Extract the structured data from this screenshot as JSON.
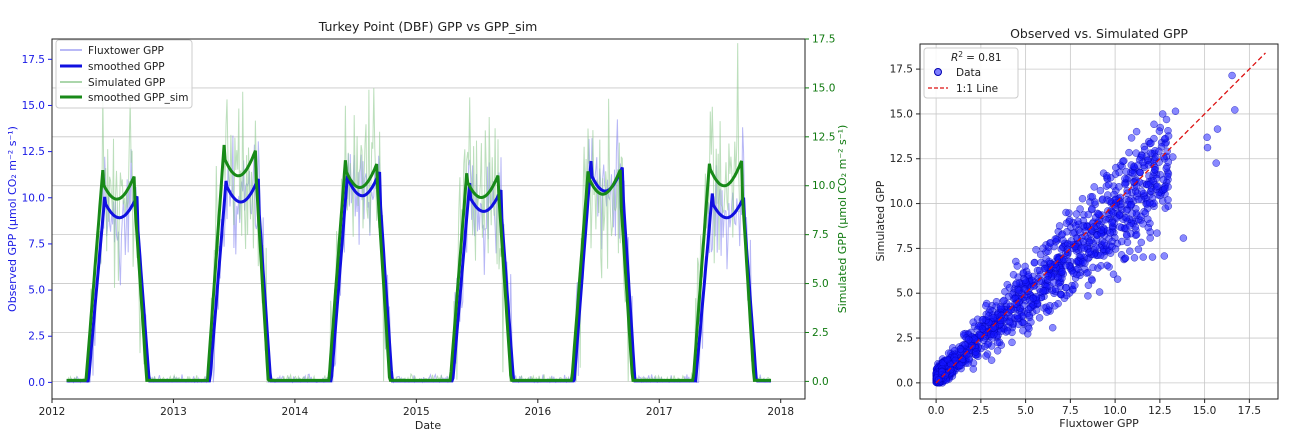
{
  "chart_data": [
    {
      "type": "line",
      "title": "Turkey Point (DBF) GPP vs GPP_sim",
      "xlabel": "Date",
      "ylabel_left": "Observed GPP (μmol CO₂ m⁻² s⁻¹)",
      "ylabel_right": "Simulated GPP (μmol CO₂ m⁻² s⁻¹)",
      "xlim": [
        2012.0,
        2018.2
      ],
      "ylim_left": [
        -0.9,
        18.6
      ],
      "ylim_right": [
        -0.9,
        17.5
      ],
      "xticks": [
        2012,
        2013,
        2014,
        2015,
        2016,
        2017,
        2018
      ],
      "xtick_labels": [
        "2012",
        "2013",
        "2014",
        "2015",
        "2016",
        "2017",
        "2018"
      ],
      "yticks_left": [
        "0.0",
        "2.5",
        "5.0",
        "7.5",
        "10.0",
        "12.5",
        "15.0",
        "17.5"
      ],
      "yticks_right": [
        "0.0",
        "2.5",
        "5.0",
        "7.5",
        "10.0",
        "12.5",
        "15.0",
        "17.5"
      ],
      "grid": true,
      "legend_position": "top-left",
      "colors": {
        "obs": "#1010e0",
        "obs_raw": "#7b7bee",
        "sim": "#188a18",
        "sim_raw": "#8fc98f",
        "left_axis": "#1a1ae6",
        "right_axis": "#107a10"
      },
      "season_peaks": [
        {
          "year": 2012,
          "obs_peak": 10.4,
          "sim_peak": 10.9
        },
        {
          "year": 2013,
          "obs_peak": 11.4,
          "sim_peak": 12.3
        },
        {
          "year": 2014,
          "obs_peak": 11.8,
          "sim_peak": 11.6
        },
        {
          "year": 2015,
          "obs_peak": 10.8,
          "sim_peak": 11.0
        },
        {
          "year": 2016,
          "obs_peak": 12.1,
          "sim_peak": 11.2
        },
        {
          "year": 2017,
          "obs_peak": 10.4,
          "sim_peak": 11.7
        }
      ],
      "series": [
        {
          "name": "Fluxtower GPP",
          "style": "raw",
          "axis": "left"
        },
        {
          "name": "smoothed GPP",
          "style": "smooth",
          "axis": "left"
        },
        {
          "name": "Simulated GPP",
          "style": "raw",
          "axis": "right"
        },
        {
          "name": "smoothed GPP_sim",
          "style": "smooth",
          "axis": "right"
        }
      ]
    },
    {
      "type": "scatter",
      "title": "Observed vs. Simulated GPP",
      "xlabel": "Fluxtower GPP",
      "ylabel": "Simulated GPP",
      "xlim": [
        -0.9,
        19.1
      ],
      "ylim": [
        -0.9,
        18.9
      ],
      "xticks": [
        "0.0",
        "2.5",
        "5.0",
        "7.5",
        "10.0",
        "12.5",
        "15.0",
        "17.5"
      ],
      "yticks": [
        "0.0",
        "2.5",
        "5.0",
        "7.5",
        "10.0",
        "12.5",
        "15.0",
        "17.5"
      ],
      "grid": true,
      "legend_position": "top-left",
      "r2_label": "= 0.81",
      "r2_symbol": "R",
      "r2_value": 0.81,
      "legend": [
        {
          "name": "Data"
        },
        {
          "name": "1:1 Line"
        }
      ],
      "identity_line": [
        [
          0,
          0
        ],
        [
          18.4,
          18.4
        ]
      ],
      "point_count": 1400,
      "colors": {
        "points": "#1414ff",
        "points_edge": "#0000b0",
        "line": "#dd1111"
      }
    }
  ]
}
